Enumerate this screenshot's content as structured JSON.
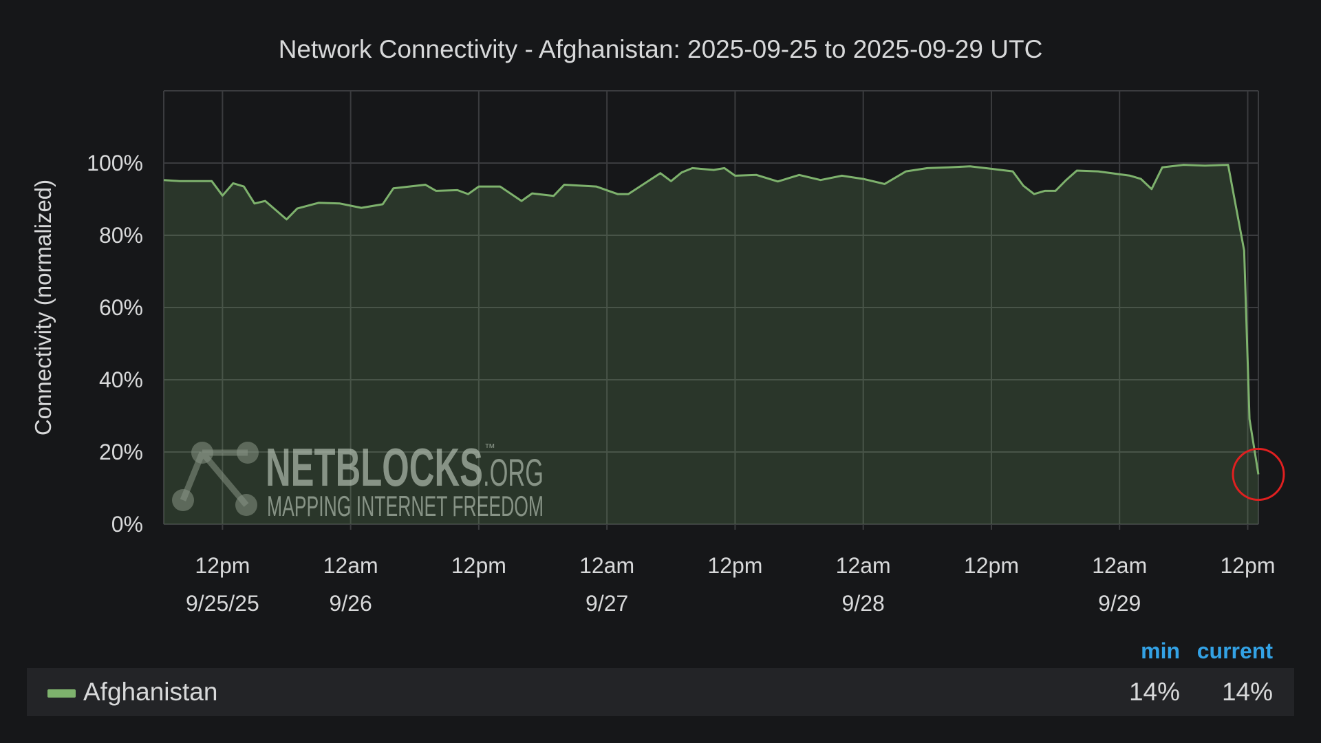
{
  "chart_data": {
    "type": "line",
    "title": "Network Connectivity - Afghanistan: 2025-09-25 to 2025-09-29 UTC",
    "y_label": "Connectivity (normalized)",
    "x": [
      "2025-09-25T06:30",
      "2025-09-25T08:00",
      "2025-09-25T11:00",
      "2025-09-25T12:00",
      "2025-09-25T13:00",
      "2025-09-25T14:00",
      "2025-09-25T15:00",
      "2025-09-25T16:00",
      "2025-09-25T18:00",
      "2025-09-25T19:00",
      "2025-09-25T21:00",
      "2025-09-25T23:00",
      "2025-09-26T01:00",
      "2025-09-26T03:00",
      "2025-09-26T04:00",
      "2025-09-26T07:00",
      "2025-09-26T08:00",
      "2025-09-26T10:00",
      "2025-09-26T11:00",
      "2025-09-26T12:00",
      "2025-09-26T14:00",
      "2025-09-26T16:00",
      "2025-09-26T17:00",
      "2025-09-26T19:00",
      "2025-09-26T20:00",
      "2025-09-26T23:00",
      "2025-09-27T01:00",
      "2025-09-27T02:00",
      "2025-09-27T05:00",
      "2025-09-27T06:00",
      "2025-09-27T07:00",
      "2025-09-27T08:00",
      "2025-09-27T10:00",
      "2025-09-27T11:00",
      "2025-09-27T12:00",
      "2025-09-27T14:00",
      "2025-09-27T16:00",
      "2025-09-27T18:00",
      "2025-09-27T20:00",
      "2025-09-27T22:00",
      "2025-09-28T00:00",
      "2025-09-28T02:00",
      "2025-09-28T04:00",
      "2025-09-28T06:00",
      "2025-09-28T08:00",
      "2025-09-28T10:00",
      "2025-09-28T12:00",
      "2025-09-28T14:00",
      "2025-09-28T15:00",
      "2025-09-28T16:00",
      "2025-09-28T17:00",
      "2025-09-28T18:00",
      "2025-09-28T19:00",
      "2025-09-28T20:00",
      "2025-09-28T22:00",
      "2025-09-29T01:00",
      "2025-09-29T02:00",
      "2025-09-29T03:00",
      "2025-09-29T04:00",
      "2025-09-29T06:00",
      "2025-09-29T08:00",
      "2025-09-29T10:10",
      "2025-09-29T11:40",
      "2025-09-29T12:10",
      "2025-09-29T13:00"
    ],
    "series": [
      {
        "name": "Afghanistan",
        "color": "#7eb26d",
        "values": [
          95.3,
          95,
          95,
          91,
          94.4,
          93.5,
          88.8,
          89.5,
          84.4,
          87.4,
          89,
          88.8,
          87.6,
          88.6,
          93,
          94,
          92.3,
          92.5,
          91.4,
          93.5,
          93.5,
          89.5,
          91.6,
          90.9,
          94,
          93.5,
          91.4,
          91.4,
          97.2,
          95,
          97.4,
          98.6,
          98.1,
          98.6,
          96.5,
          96.7,
          94.9,
          96.7,
          95.3,
          96.5,
          95.6,
          94.2,
          97.7,
          98.6,
          98.8,
          99.1,
          98.4,
          97.7,
          93.7,
          91.4,
          92.3,
          92.3,
          95.3,
          97.9,
          97.7,
          96.5,
          95.6,
          92.8,
          98.8,
          99.5,
          99.3,
          99.5,
          75.8,
          29.1,
          13.8
        ],
        "stats": [
          {
            "value": 14,
            "label": "14%"
          },
          {
            "value": 14,
            "label": "14%"
          }
        ]
      }
    ],
    "legend_columns": [
      "min",
      "current"
    ],
    "xlim": [
      "2025-09-25T06:30",
      "2025-09-29T13:00"
    ],
    "xticks": [
      {
        "value": "2025-09-25T12:00",
        "label": [
          "12pm",
          "9/25/25"
        ]
      },
      {
        "value": "2025-09-26T00:00",
        "label": [
          "12am",
          "9/26"
        ]
      },
      {
        "value": "2025-09-26T12:00",
        "label": [
          "12pm"
        ]
      },
      {
        "value": "2025-09-27T00:00",
        "label": [
          "12am",
          "9/27"
        ]
      },
      {
        "value": "2025-09-27T12:00",
        "label": [
          "12pm"
        ]
      },
      {
        "value": "2025-09-28T00:00",
        "label": [
          "12am",
          "9/28"
        ]
      },
      {
        "value": "2025-09-28T12:00",
        "label": [
          "12pm"
        ]
      },
      {
        "value": "2025-09-29T00:00",
        "label": [
          "12am",
          "9/29"
        ]
      },
      {
        "value": "2025-09-29T12:00",
        "label": [
          "12pm"
        ]
      }
    ],
    "ylim": [
      0,
      120
    ],
    "yticks": [
      {
        "value": 0,
        "label": "0%"
      },
      {
        "value": 20,
        "label": "20%"
      },
      {
        "value": 40,
        "label": "40%"
      },
      {
        "value": 60,
        "label": "60%"
      },
      {
        "value": 80,
        "label": "80%"
      },
      {
        "value": 100,
        "label": "100%"
      }
    ],
    "grid": true,
    "watermark": {
      "name": "NETBLOCKS",
      "mark": "™",
      "suffix": ".ORG",
      "tagline": "MAPPING INTERNET FREEDOM"
    }
  }
}
